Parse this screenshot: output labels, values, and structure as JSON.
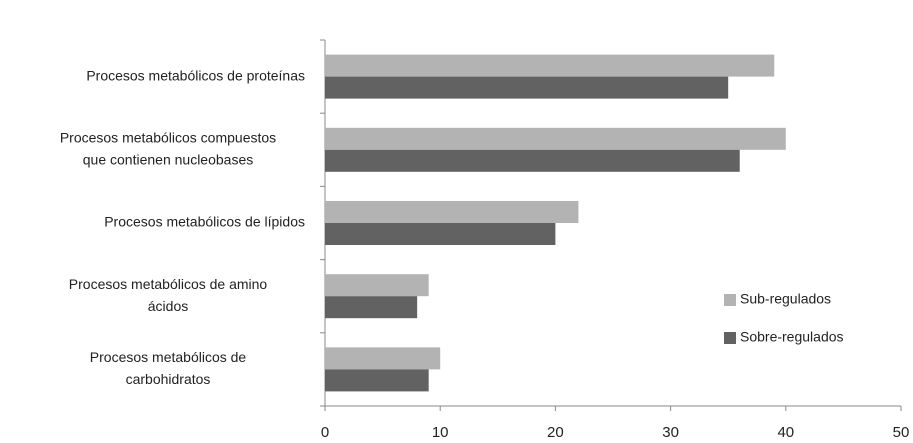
{
  "chart_data": {
    "type": "barh",
    "categories": [
      [
        "Procesos metabólicos de proteínas"
      ],
      [
        "Procesos metabólicos compuestos",
        "que contienen nucleobases"
      ],
      [
        "Procesos metabólicos de lípidos"
      ],
      [
        "Procesos metabólicos de amino",
        "ácidos"
      ],
      [
        "Procesos metabólicos de",
        "carbohidratos"
      ]
    ],
    "series": [
      {
        "name": "Sub-regulados",
        "color": "#b3b3b3",
        "values": [
          39,
          40,
          22,
          9,
          10
        ]
      },
      {
        "name": "Sobre-regulados",
        "color": "#626262",
        "values": [
          35,
          36,
          20,
          8,
          9
        ]
      }
    ],
    "xlim": [
      0,
      50
    ],
    "xticks": [
      0,
      10,
      20,
      30,
      40,
      50
    ],
    "grid": false,
    "legend": "lower right"
  }
}
